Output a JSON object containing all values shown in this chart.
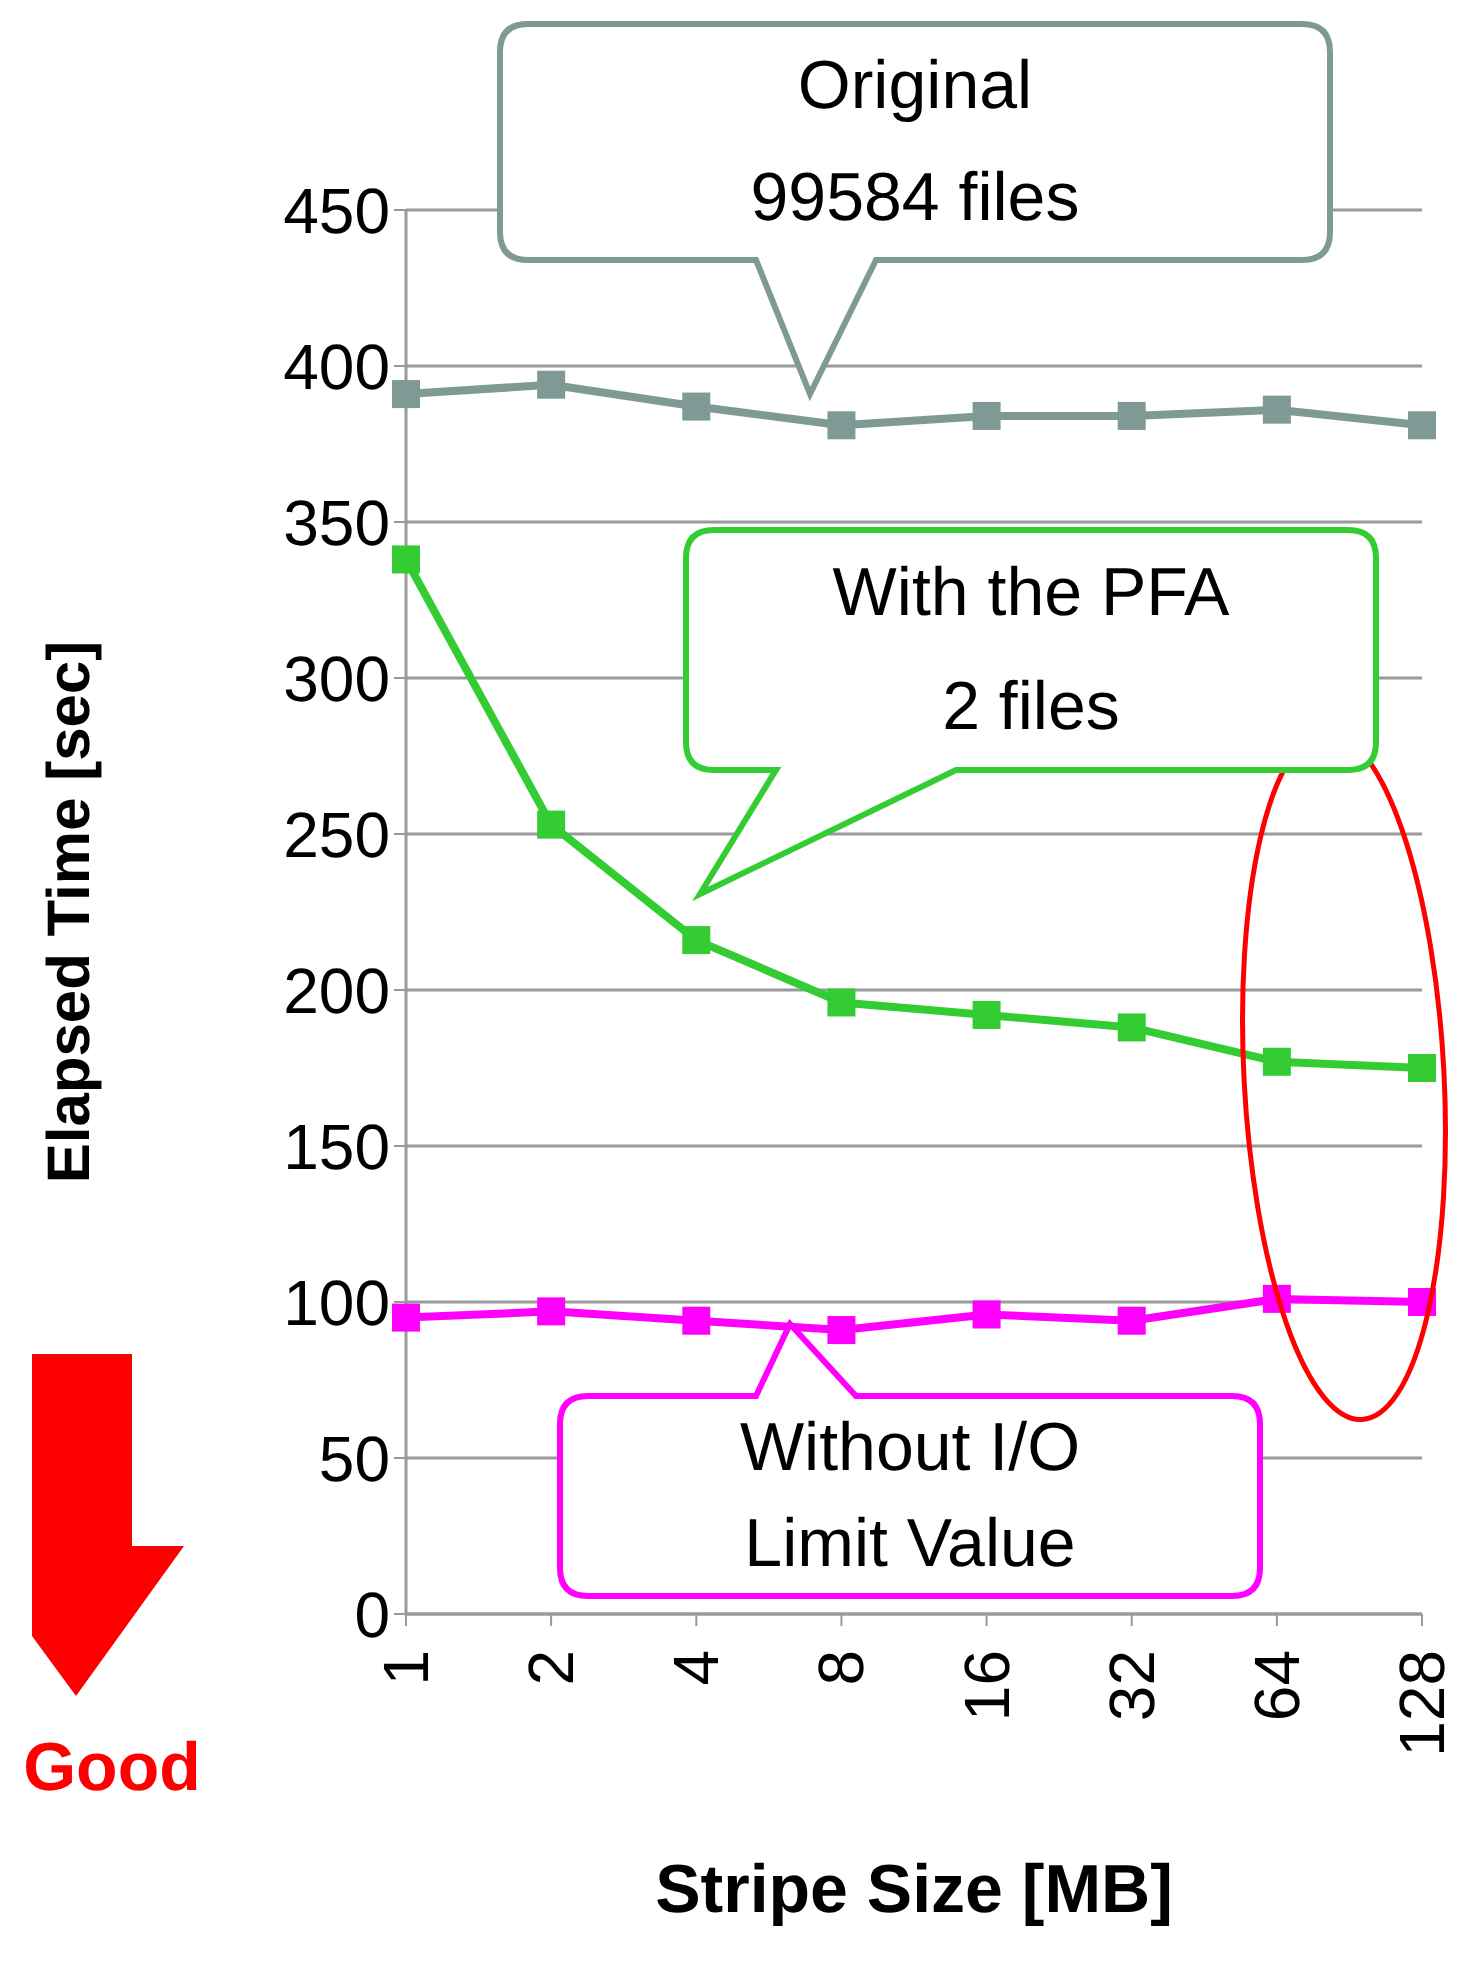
{
  "chart_data": {
    "type": "line",
    "xlabel": "Stripe Size [MB]",
    "ylabel": "Elapsed Time [sec]",
    "categories": [
      "1",
      "2",
      "4",
      "8",
      "16",
      "32",
      "64",
      "128"
    ],
    "series": [
      {
        "color": "#7f9a94",
        "values": [
          391,
          394,
          387,
          381,
          384,
          384,
          386,
          381
        ]
      },
      {
        "color": "#33cc33",
        "values": [
          338,
          253,
          216,
          196,
          192,
          188,
          177,
          175
        ]
      },
      {
        "color": "#ff00ff",
        "values": [
          95,
          97,
          94,
          91,
          96,
          94,
          101,
          100
        ]
      }
    ],
    "ylim": [
      0,
      450
    ],
    "yticks": [
      0,
      50,
      100,
      150,
      200,
      250,
      300,
      350,
      400,
      450
    ],
    "grid": "y",
    "marker": "square",
    "legend": false,
    "annotations": [
      "Original\n99584 files",
      "With the PFA\n2 files",
      "Without I/O\nLimit Value",
      "Good"
    ]
  }
}
